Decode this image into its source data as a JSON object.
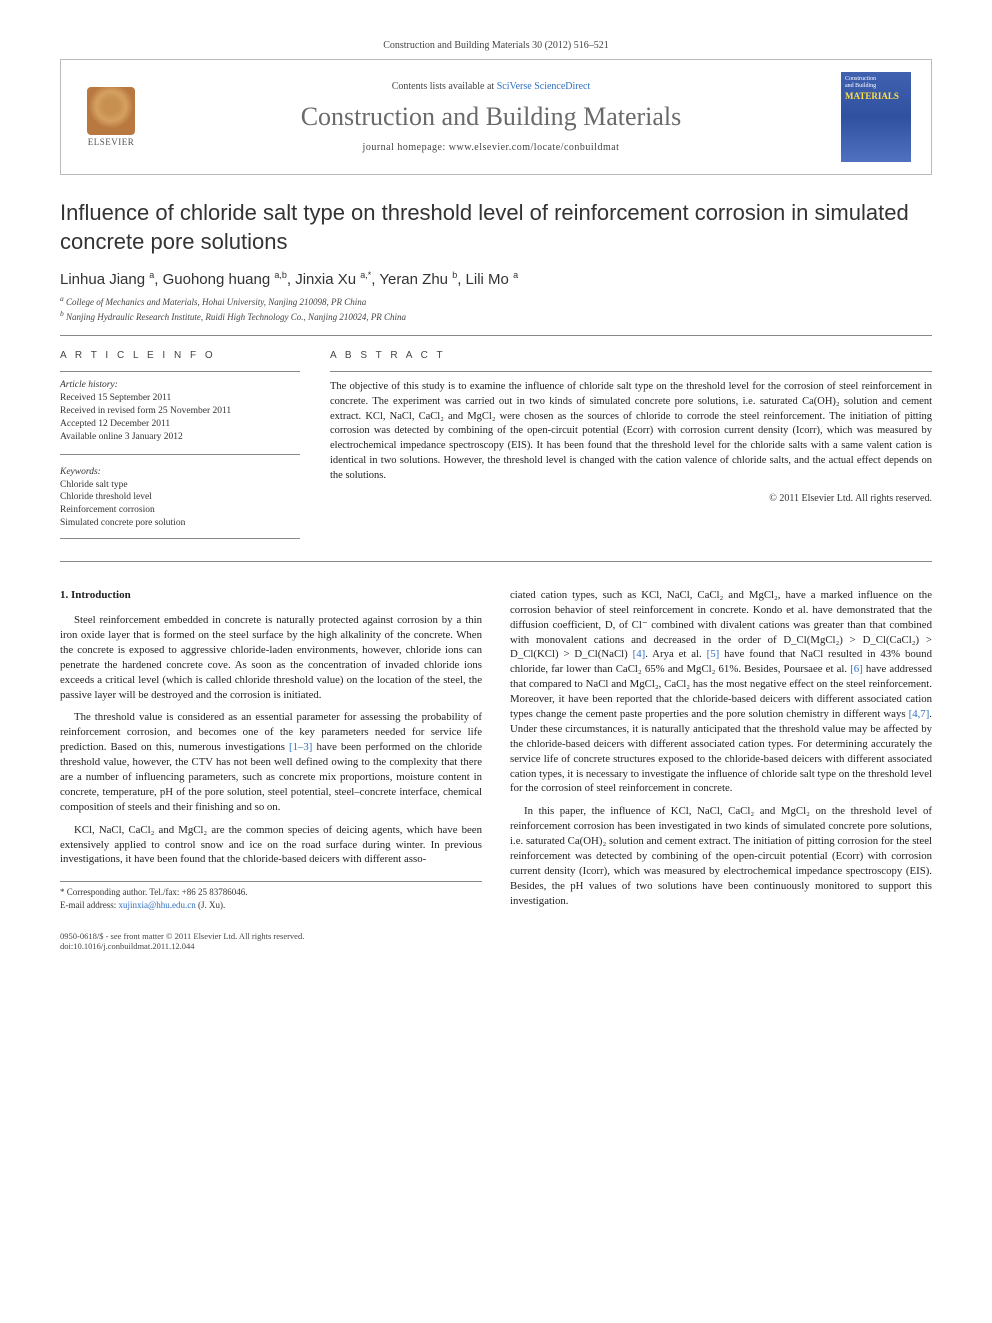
{
  "citation": "Construction and Building Materials 30 (2012) 516–521",
  "header": {
    "publisher": "ELSEVIER",
    "contents_prefix": "Contents lists available at ",
    "contents_link": "SciVerse ScienceDirect",
    "journal": "Construction and Building Materials",
    "homepage_prefix": "journal homepage: ",
    "homepage_url": "www.elsevier.com/locate/conbuildmat",
    "cover_line1": "Construction",
    "cover_line2": "and Building",
    "cover_materials": "MATERIALS"
  },
  "title": "Influence of chloride salt type on threshold level of reinforcement corrosion in simulated concrete pore solutions",
  "authors_html": "Linhua Jiang <sup>a</sup>, Guohong huang <sup>a,b</sup>, Jinxia Xu <sup>a,*</sup>, Yeran Zhu <sup>b</sup>, Lili Mo <sup>a</sup>",
  "affiliations": [
    "a College of Mechanics and Materials, Hohai University, Nanjing 210098, PR China",
    "b Nanjing Hydraulic Research Institute, Ruidi High Technology Co., Nanjing 210024, PR China"
  ],
  "article_info_heading": "A R T I C L E   I N F O",
  "abstract_heading": "A B S T R A C T",
  "history_label": "Article history:",
  "history": [
    "Received 15 September 2011",
    "Received in revised form 25 November 2011",
    "Accepted 12 December 2011",
    "Available online 3 January 2012"
  ],
  "keywords_label": "Keywords:",
  "keywords": [
    "Chloride salt type",
    "Chloride threshold level",
    "Reinforcement corrosion",
    "Simulated concrete pore solution"
  ],
  "abstract": "The objective of this study is to examine the influence of chloride salt type on the threshold level for the corrosion of steel reinforcement in concrete. The experiment was carried out in two kinds of simulated concrete pore solutions, i.e. saturated Ca(OH)₂ solution and cement extract. KCl, NaCl, CaCl₂ and MgCl₂ were chosen as the sources of chloride to corrode the steel reinforcement. The initiation of pitting corrosion was detected by combining of the open-circuit potential (Ecorr) with corrosion current density (Icorr), which was measured by electrochemical impedance spectroscopy (EIS). It has been found that the threshold level for the chloride salts with a same valent cation is identical in two solutions. However, the threshold level is changed with the cation valence of chloride salts, and the actual effect depends on the solutions.",
  "copyright": "© 2011 Elsevier Ltd. All rights reserved.",
  "section_number": "1.",
  "section_title": "Introduction",
  "col1": {
    "p1": "Steel reinforcement embedded in concrete is naturally protected against corrosion by a thin iron oxide layer that is formed on the steel surface by the high alkalinity of the concrete. When the concrete is exposed to aggressive chloride-laden environments, however, chloride ions can penetrate the hardened concrete cove. As soon as the concentration of invaded chloride ions exceeds a critical level (which is called chloride threshold value) on the location of the steel, the passive layer will be destroyed and the corrosion is initiated.",
    "p2_a": "The threshold value is considered as an essential parameter for assessing the probability of reinforcement corrosion, and becomes one of the key parameters needed for service life prediction. Based on this, numerous investigations ",
    "p2_ref": "[1–3]",
    "p2_b": " have been performed on the chloride threshold value, however, the CTV has not been well defined owing to the complexity that there are a number of influencing parameters, such as concrete mix proportions, moisture content in concrete, temperature, pH of the pore solution, steel potential, steel–concrete interface, chemical composition of steels and their finishing and so on.",
    "p3": "KCl, NaCl, CaCl₂ and MgCl₂ are the common species of deicing agents, which have been extensively applied to control snow and ice on the road surface during winter. In previous investigations, it have been found that the chloride-based deicers with different asso-"
  },
  "col2": {
    "p1_a": "ciated cation types, such as KCl, NaCl, CaCl₂ and MgCl₂, have a marked influence on the corrosion behavior of steel reinforcement in concrete. Kondo et al. have demonstrated that the diffusion coefficient, D, of Cl⁻ combined with divalent cations was greater than that combined with monovalent cations and decreased in the order of D_Cl(MgCl₂) > D_Cl(CaCl₂) > D_Cl(KCl) > D_Cl(NaCl) ",
    "p1_ref1": "[4]",
    "p1_b": ". Arya et al. ",
    "p1_ref2": "[5]",
    "p1_c": " have found that NaCl resulted in 43% bound chloride, far lower than CaCl₂ 65% and MgCl₂ 61%. Besides, Poursaee et al. ",
    "p1_ref3": "[6]",
    "p1_d": " have addressed that compared to NaCl and MgCl₂, CaCl₂ has the most negative effect on the steel reinforcement. Moreover, it have been reported that the chloride-based deicers with different associated cation types change the cement paste properties and the pore solution chemistry in different ways ",
    "p1_ref4": "[4,7]",
    "p1_e": ". Under these circumstances, it is naturally anticipated that the threshold value may be affected by the chloride-based deicers with different associated cation types. For determining accurately the service life of concrete structures exposed to the chloride-based deicers with different associated cation types, it is necessary to investigate the influence of chloride salt type on the threshold level for the corrosion of steel reinforcement in concrete.",
    "p2": "In this paper, the influence of KCl, NaCl, CaCl₂ and MgCl₂ on the threshold level of reinforcement corrosion has been investigated in two kinds of simulated concrete pore solutions, i.e. saturated Ca(OH)₂ solution and cement extract. The initiation of pitting corrosion for the steel reinforcement was detected by combining of the open-circuit potential (Ecorr) with corrosion current density (Icorr), which was measured by electrochemical impedance spectroscopy (EIS). Besides, the pH values of two solutions have been continuously monitored to support this investigation."
  },
  "footnote": {
    "corr": "* Corresponding author. Tel./fax: +86 25 83786046.",
    "email_label": "E-mail address: ",
    "email": "xujinxia@hhu.edu.cn",
    "email_suffix": " (J. Xu)."
  },
  "bottom": {
    "left1": "0950-0618/$ - see front matter © 2011 Elsevier Ltd. All rights reserved.",
    "left2": "doi:10.1016/j.conbuildmat.2011.12.044"
  }
}
